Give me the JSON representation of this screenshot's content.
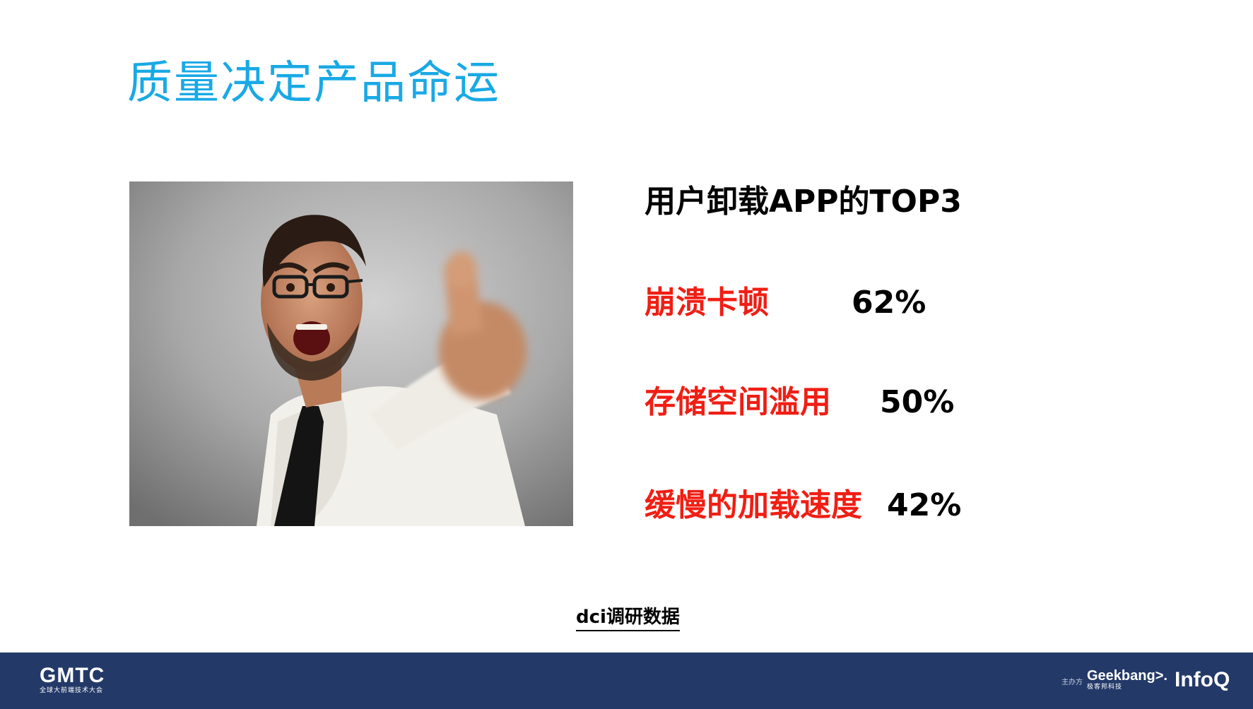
{
  "slide": {
    "title": "质量决定产品命运"
  },
  "stats": {
    "heading": "用户卸载APP的TOP3",
    "items": [
      {
        "label": "崩溃卡顿",
        "value": "62%"
      },
      {
        "label": "存储空间滥用",
        "value": "50%"
      },
      {
        "label": "缓慢的加载速度",
        "value": "42%"
      }
    ]
  },
  "source": {
    "text": "dci调研数据"
  },
  "footer": {
    "logo_text": "GMTC",
    "logo_subtitle": "全球大前端技术大会",
    "host_label": "主办方",
    "geekbang_text": "Geekbang>.",
    "geekbang_subtitle": "极客邦科技",
    "infoq_text": "InfoQ"
  },
  "colors": {
    "title": "#19a9e5",
    "label_red": "#f01e14",
    "footer_bg": "#233968"
  },
  "icons": {
    "photo": "angry-man-pointing-photo"
  }
}
